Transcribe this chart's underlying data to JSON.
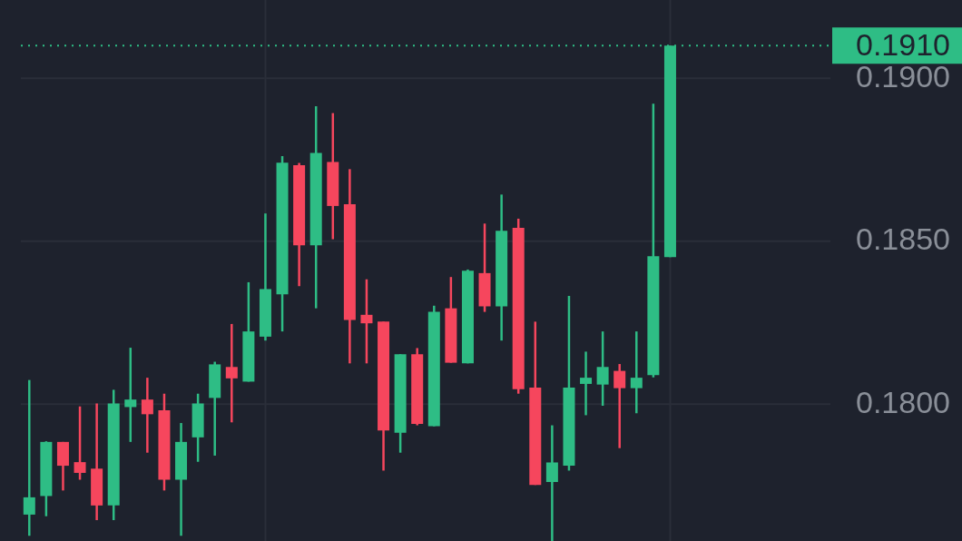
{
  "chart_data": {
    "type": "candlestick",
    "categories": [
      null,
      null,
      null,
      null,
      null,
      null,
      null,
      null,
      null,
      null,
      null,
      null,
      null,
      null,
      null,
      null,
      null,
      null,
      null,
      null,
      null,
      null,
      null,
      null,
      null,
      null,
      null,
      null,
      null,
      null,
      null,
      null,
      null,
      null,
      null,
      null,
      null,
      null,
      null,
      null,
      null,
      null,
      null,
      null,
      null,
      null,
      null,
      null
    ],
    "ohlc": [
      [
        0.17661,
        0.18074,
        0.17596,
        0.17714
      ],
      [
        0.17718,
        0.17886,
        0.17656,
        0.17884
      ],
      [
        0.17884,
        0.17884,
        0.17735,
        0.17811
      ],
      [
        0.17822,
        0.17993,
        0.17768,
        0.17789
      ],
      [
        0.17802,
        0.18002,
        0.17644,
        0.17689
      ],
      [
        0.17689,
        0.18044,
        0.17644,
        0.18002
      ],
      [
        0.17991,
        0.18173,
        0.17884,
        0.18014
      ],
      [
        0.18014,
        0.18081,
        0.17851,
        0.17969
      ],
      [
        0.17981,
        0.18032,
        0.17735,
        0.17768
      ],
      [
        0.17768,
        0.17942,
        0.17596,
        0.17884
      ],
      [
        0.17898,
        0.18032,
        0.17823,
        0.18002
      ],
      [
        0.18019,
        0.1813,
        0.17842,
        0.18122
      ],
      [
        0.18114,
        0.18246,
        0.17944,
        0.18079
      ],
      [
        0.18069,
        0.18374,
        0.18069,
        0.18223
      ],
      [
        0.18207,
        0.18585,
        0.18195,
        0.18353
      ],
      [
        0.18337,
        0.18761,
        0.18223,
        0.18741
      ],
      [
        0.18733,
        0.1874,
        0.18362,
        0.18487
      ],
      [
        0.18487,
        0.18914,
        0.18294,
        0.18771
      ],
      [
        0.18743,
        0.18893,
        0.18506,
        0.18608
      ],
      [
        0.18613,
        0.18721,
        0.18125,
        0.18258
      ],
      [
        0.18274,
        0.18383,
        0.18125,
        0.18248
      ],
      [
        0.18253,
        0.18253,
        0.17796,
        0.17919
      ],
      [
        0.17912,
        0.18153,
        0.17851,
        0.18153
      ],
      [
        0.18153,
        0.18172,
        0.17935,
        0.17939
      ],
      [
        0.17932,
        0.18302,
        0.17932,
        0.18283
      ],
      [
        0.18294,
        0.1839,
        0.18127,
        0.18127
      ],
      [
        0.18125,
        0.18413,
        0.18125,
        0.18409
      ],
      [
        0.18402,
        0.18554,
        0.18283,
        0.183
      ],
      [
        0.183,
        0.18643,
        0.18195,
        0.18532
      ],
      [
        0.18541,
        0.18569,
        0.18032,
        0.18046
      ],
      [
        0.18051,
        0.18253,
        0.17752,
        0.17752
      ],
      [
        0.17761,
        0.17935,
        0.1758,
        0.17821
      ],
      [
        0.17811,
        0.18332,
        0.17796,
        0.18051
      ],
      [
        0.18062,
        0.18161,
        0.17966,
        0.18081
      ],
      [
        0.1806,
        0.18223,
        0.17995,
        0.18114
      ],
      [
        0.18102,
        0.18123,
        0.17865,
        0.18049
      ],
      [
        0.18049,
        0.18223,
        0.17972,
        0.18081
      ],
      [
        0.18089,
        0.18922,
        0.18082,
        0.18454
      ],
      [
        0.18451,
        0.191,
        0.18451,
        0.191
      ],
      null,
      null,
      null,
      null,
      null,
      null,
      null,
      null,
      null
    ],
    "colors": [
      "#2ebd85",
      "#2ebd85",
      "#f6465d",
      "#f6465d",
      "#f6465d",
      "#2ebd85",
      "#2ebd85",
      "#f6465d",
      "#f6465d",
      "#2ebd85",
      "#2ebd85",
      "#2ebd85",
      "#f6465d",
      "#2ebd85",
      "#2ebd85",
      "#2ebd85",
      "#f6465d",
      "#2ebd85",
      "#f6465d",
      "#f6465d",
      "#f6465d",
      "#f6465d",
      "#2ebd85",
      "#f6465d",
      "#2ebd85",
      "#f6465d",
      "#2ebd85",
      "#f6465d",
      "#2ebd85",
      "#f6465d",
      "#f6465d",
      "#2ebd85",
      "#2ebd85",
      "#2ebd85",
      "#2ebd85",
      "#f6465d",
      "#2ebd85",
      "#2ebd85",
      "#2ebd85",
      null,
      null,
      null,
      null,
      null,
      null,
      null,
      null,
      null
    ],
    "ylim": [
      0.1758,
      0.1924
    ],
    "yticks": [
      {
        "value": 0.18,
        "label": "0.1800"
      },
      {
        "value": 0.185,
        "label": "0.1850"
      },
      {
        "value": 0.19,
        "label": "0.1900"
      }
    ],
    "ref_lines": [
      {
        "axis": "y",
        "value": 0.191,
        "label": "0.1910",
        "color": "#2ebd85",
        "line_style": "dotted"
      }
    ],
    "grid": true,
    "tick_labels": "y"
  }
}
